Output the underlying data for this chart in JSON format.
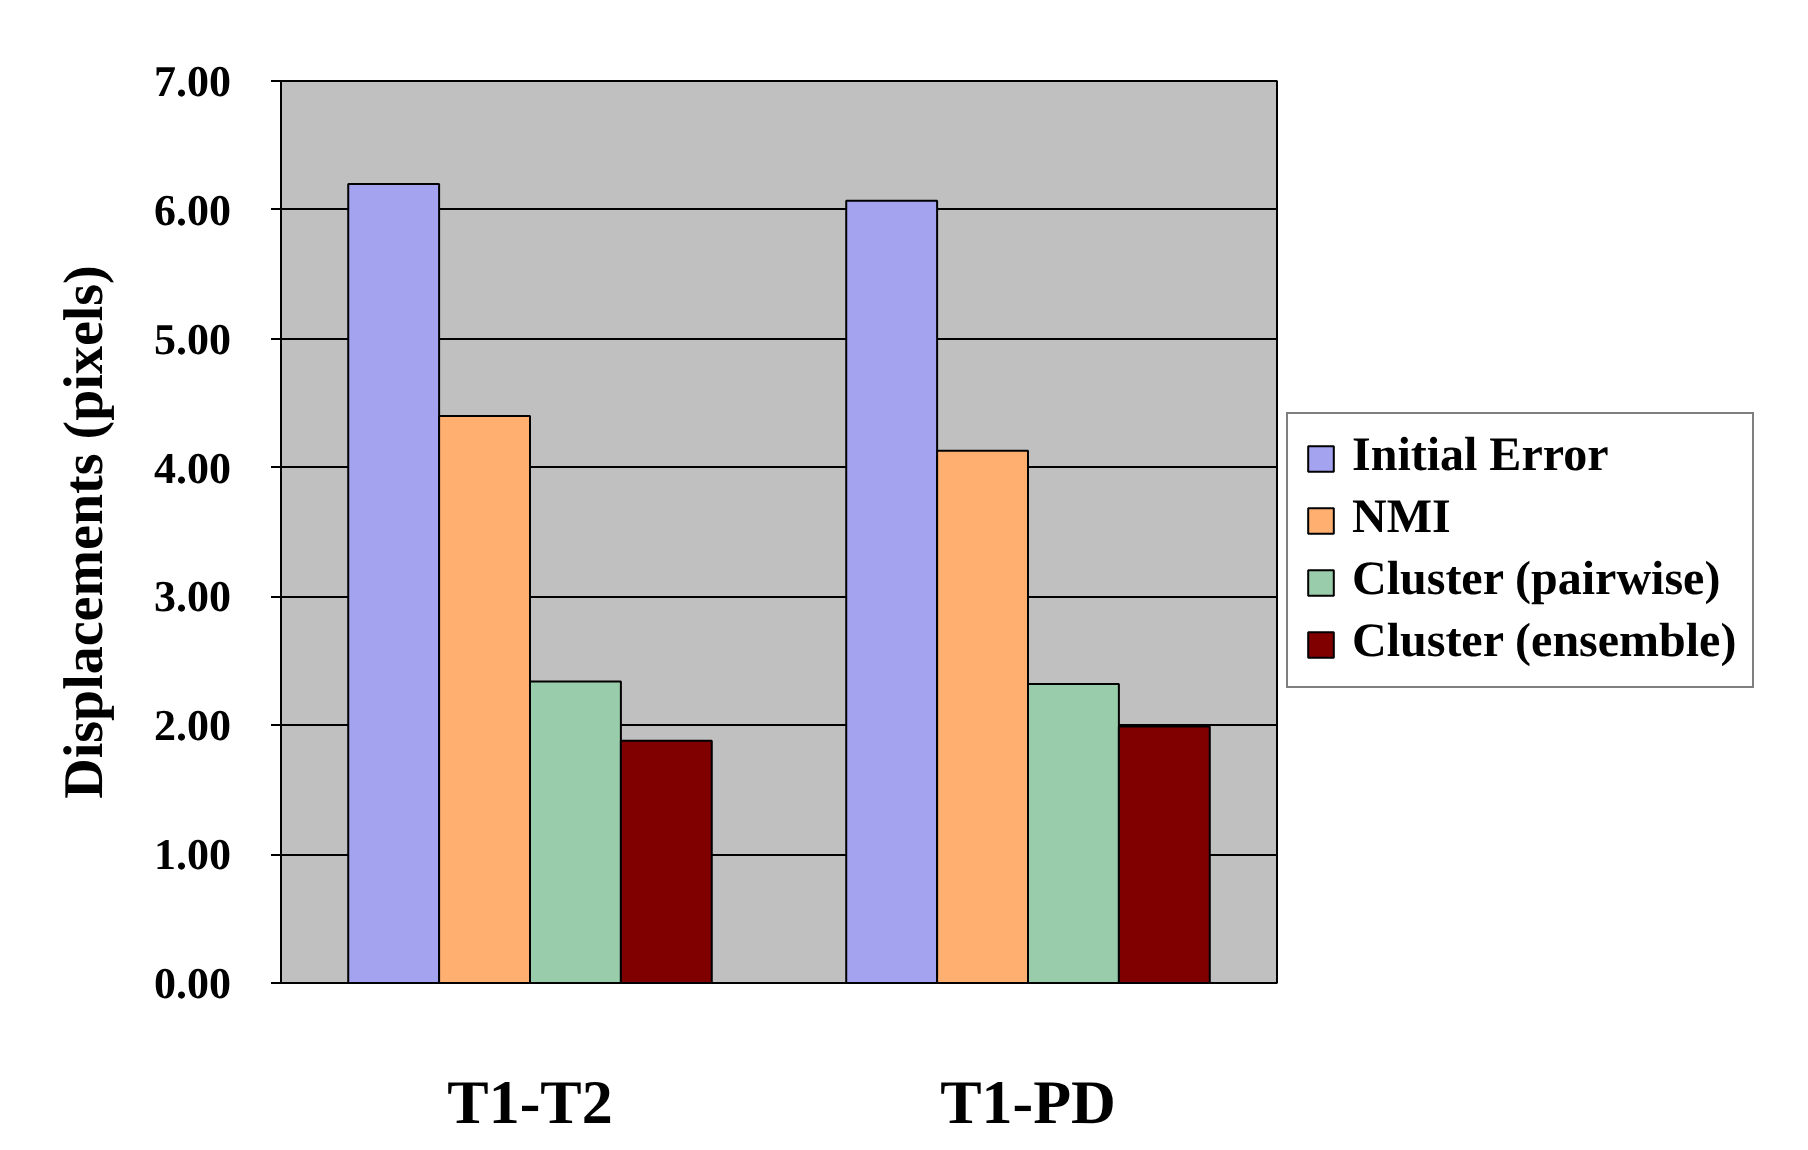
{
  "chart_data": {
    "type": "bar",
    "ylabel": "Displacements (pixels)",
    "categories": [
      "T1-T2",
      "T1-PD"
    ],
    "series": [
      {
        "name": "Initial Error",
        "color": "#a3a3f0",
        "values": [
          6.2,
          6.07
        ]
      },
      {
        "name": "NMI",
        "color": "#ffb070",
        "values": [
          4.4,
          4.13
        ]
      },
      {
        "name": "Cluster (pairwise)",
        "color": "#99ccaa",
        "values": [
          2.34,
          2.32
        ]
      },
      {
        "name": "Cluster (ensemble)",
        "color": "#800000",
        "values": [
          1.88,
          1.99
        ]
      }
    ],
    "ylim": [
      0,
      7
    ],
    "yticks": [
      {
        "value": 0,
        "label": "0.00"
      },
      {
        "value": 1,
        "label": "1.00"
      },
      {
        "value": 2,
        "label": "2.00"
      },
      {
        "value": 3,
        "label": "3.00"
      },
      {
        "value": 4,
        "label": "4.00"
      },
      {
        "value": 5,
        "label": "5.00"
      },
      {
        "value": 6,
        "label": "6.00"
      },
      {
        "value": 7,
        "label": "7.00"
      }
    ],
    "grid": "y",
    "legend": "right"
  }
}
